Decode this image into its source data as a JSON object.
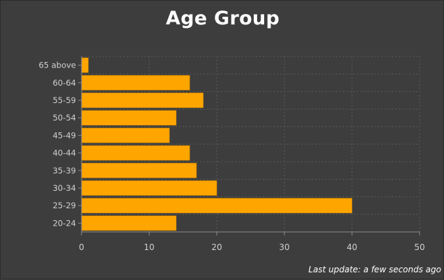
{
  "header": {
    "title": "Age Group"
  },
  "footer": {
    "last_update": "Last update: a few seconds ago"
  },
  "colors": {
    "bar": "#FFA500",
    "background": "#3d3d3d",
    "grid": "#5c5c5c",
    "axis": "#8a8a8a",
    "text": "#d0d0d0"
  },
  "chart_data": {
    "type": "bar",
    "orientation": "horizontal",
    "title": "Age Group",
    "categories": [
      "65 above",
      "60-64",
      "55-59",
      "50-54",
      "45-49",
      "40-44",
      "35-39",
      "30-34",
      "25-29",
      "20-24"
    ],
    "values": [
      1,
      16,
      18,
      14,
      13,
      16,
      17,
      20,
      40,
      14
    ],
    "xlim": [
      0,
      50
    ],
    "xticks": [
      0,
      10,
      20,
      30,
      40,
      50
    ],
    "xlabel": "",
    "ylabel": "",
    "grid": true,
    "legend": "none"
  }
}
